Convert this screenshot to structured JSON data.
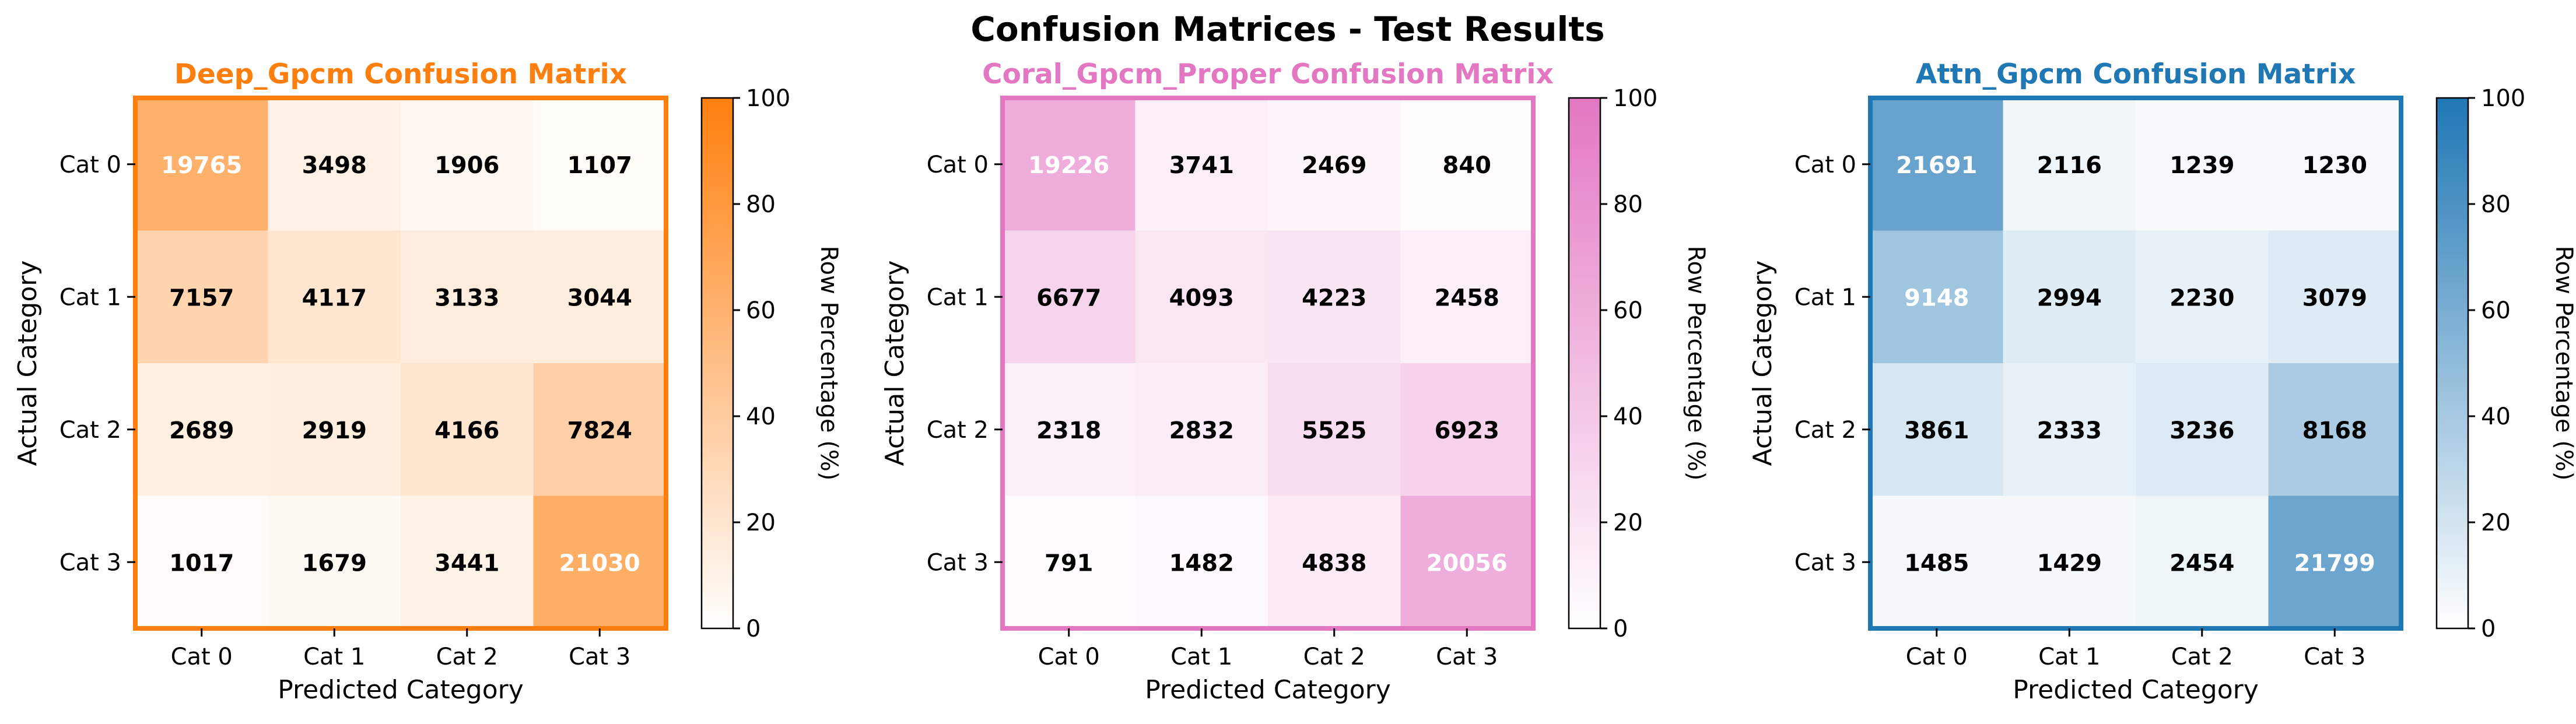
{
  "figure_title": "Confusion Matrices - Test Results",
  "chart_data": [
    {
      "type": "heatmap",
      "title": "Deep_Gpcm Confusion Matrix",
      "xlabel": "Predicted Category",
      "ylabel": "Actual Category",
      "x_categories": [
        "Cat 0",
        "Cat 1",
        "Cat 2",
        "Cat 3"
      ],
      "y_categories": [
        "Cat 0",
        "Cat 1",
        "Cat 2",
        "Cat 3"
      ],
      "values": [
        [
          19765,
          3498,
          1906,
          1107
        ],
        [
          7157,
          4117,
          3133,
          3044
        ],
        [
          2689,
          2919,
          4166,
          7824
        ],
        [
          1017,
          1679,
          3441,
          21030
        ]
      ],
      "colorbar": {
        "label": "Row Percentage (%)",
        "range": [
          0,
          100
        ],
        "ticks": [
          "0",
          "20",
          "40",
          "60",
          "80",
          "100"
        ]
      },
      "color": "#ff7f0e"
    },
    {
      "type": "heatmap",
      "title": "Coral_Gpcm_Proper Confusion Matrix",
      "xlabel": "Predicted Category",
      "ylabel": "Actual Category",
      "x_categories": [
        "Cat 0",
        "Cat 1",
        "Cat 2",
        "Cat 3"
      ],
      "y_categories": [
        "Cat 0",
        "Cat 1",
        "Cat 2",
        "Cat 3"
      ],
      "values": [
        [
          19226,
          3741,
          2469,
          840
        ],
        [
          6677,
          4093,
          4223,
          2458
        ],
        [
          2318,
          2832,
          5525,
          6923
        ],
        [
          791,
          1482,
          4838,
          20056
        ]
      ],
      "colorbar": {
        "label": "Row Percentage (%)",
        "range": [
          0,
          100
        ],
        "ticks": [
          "0",
          "20",
          "40",
          "60",
          "80",
          "100"
        ]
      },
      "color": "#e377c2"
    },
    {
      "type": "heatmap",
      "title": "Attn_Gpcm Confusion Matrix",
      "xlabel": "Predicted Category",
      "ylabel": "Actual Category",
      "x_categories": [
        "Cat 0",
        "Cat 1",
        "Cat 2",
        "Cat 3"
      ],
      "y_categories": [
        "Cat 0",
        "Cat 1",
        "Cat 2",
        "Cat 3"
      ],
      "values": [
        [
          21691,
          2116,
          1239,
          1230
        ],
        [
          9148,
          2994,
          2230,
          3079
        ],
        [
          3861,
          2333,
          3236,
          8168
        ],
        [
          1485,
          1429,
          2454,
          21799
        ]
      ],
      "colorbar": {
        "label": "Row Percentage (%)",
        "range": [
          0,
          100
        ],
        "ticks": [
          "0",
          "20",
          "40",
          "60",
          "80",
          "100"
        ]
      },
      "color": "#1f77b4"
    }
  ]
}
